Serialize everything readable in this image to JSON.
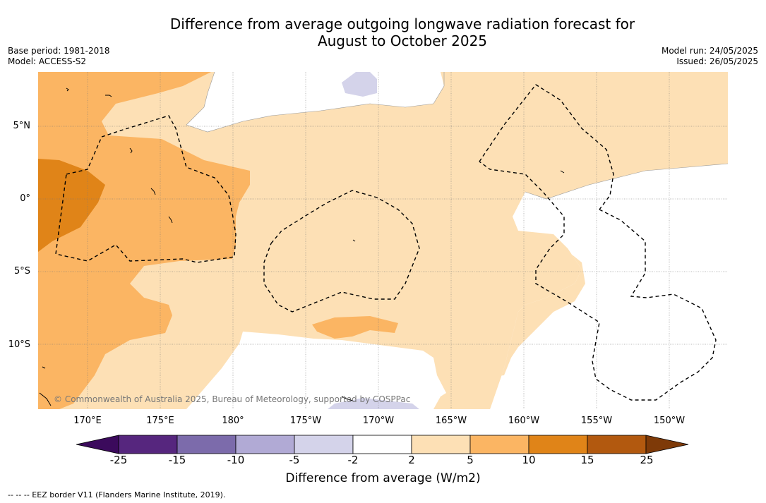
{
  "title_line1": "Difference from average outgoing longwave radiation forecast for",
  "title_line2": "August to October 2025",
  "base_period": "Base period: 1981-2018",
  "model": "Model: ACCESS-S2",
  "model_run": "Model run: 24/05/2025",
  "issued": "Issued: 26/05/2025",
  "copyright": "© Commonwealth of Australia 2025, Bureau of Meteorology, supported by COSPPac",
  "lat_labels": [
    "5°N",
    "0°",
    "5°S",
    "10°S"
  ],
  "lon_labels": [
    "170°E",
    "175°E",
    "180°",
    "175°W",
    "170°W",
    "165°W",
    "160°W",
    "155°W",
    "150°W"
  ],
  "colorbar": {
    "label": "Difference from average (W/m2)",
    "ticks": [
      "-25",
      "-15",
      "-10",
      "-5",
      "-2",
      "2",
      "5",
      "10",
      "15",
      "25"
    ],
    "colors": [
      "#56267e",
      "#7c6bab",
      "#b1aad5",
      "#d4d3ea",
      "#ffffff",
      "#fde0b5",
      "#fbb563",
      "#e08418",
      "#b2590f"
    ],
    "extend_low_color": "#3b0a5c",
    "extend_high_color": "#7e3a08"
  },
  "footnote": "--  --  -- EEZ border V11 (Flanders Marine Institute, 2019)."
}
